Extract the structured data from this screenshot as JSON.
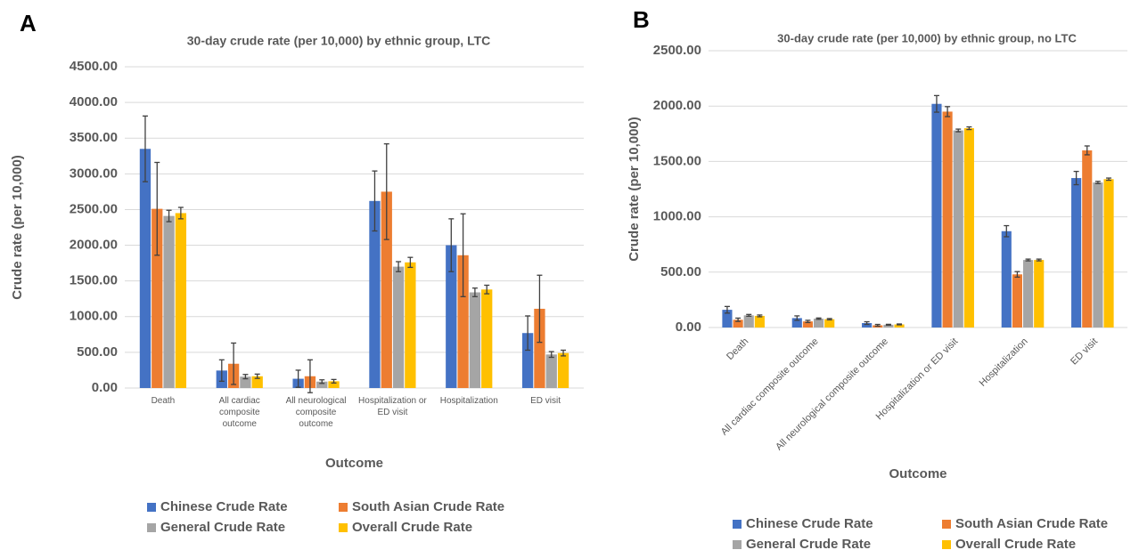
{
  "chart_data": [
    {
      "type": "bar",
      "panel": "A",
      "title": "30-day crude rate (per 10,000) by ethnic group, LTC",
      "x_label": "Outcome",
      "y_label": "Crude rate (per 10,000)",
      "categories": [
        "Death",
        "All cardiac composite outcome",
        "All neurological composite outcome",
        "Hospitalization or ED visit",
        "Hospitalization",
        "ED visit"
      ],
      "series": [
        {
          "name": "Chinese Crude Rate",
          "color": "#4472c4",
          "values": [
            3350,
            245,
            130,
            2620,
            2000,
            770
          ],
          "errors": [
            460,
            150,
            120,
            420,
            370,
            240
          ]
        },
        {
          "name": "South Asian Crude Rate",
          "color": "#ed7d31",
          "values": [
            2510,
            340,
            165,
            2750,
            1860,
            1110
          ],
          "errors": [
            650,
            290,
            230,
            670,
            580,
            470
          ]
        },
        {
          "name": "General Crude Rate",
          "color": "#a5a5a5",
          "values": [
            2410,
            160,
            90,
            1700,
            1340,
            470
          ],
          "errors": [
            80,
            30,
            25,
            70,
            60,
            40
          ]
        },
        {
          "name": "Overall Crude Rate",
          "color": "#ffc000",
          "values": [
            2450,
            165,
            95,
            1760,
            1380,
            490
          ],
          "errors": [
            80,
            30,
            25,
            70,
            60,
            40
          ]
        }
      ],
      "ylim": [
        0,
        4500
      ],
      "yticks": [
        {
          "value": 0,
          "label": "0.00"
        },
        {
          "value": 500,
          "label": "500.00"
        },
        {
          "value": 1000,
          "label": "1000.00"
        },
        {
          "value": 1500,
          "label": "1500.00"
        },
        {
          "value": 2000,
          "label": "2000.00"
        },
        {
          "value": 2500,
          "label": "2500.00"
        },
        {
          "value": 3000,
          "label": "3000.00"
        },
        {
          "value": 3500,
          "label": "3500.00"
        },
        {
          "value": 4000,
          "label": "4000.00"
        },
        {
          "value": 4500,
          "label": "4500.00"
        }
      ],
      "grid": true,
      "legend": "bottom"
    },
    {
      "type": "bar",
      "panel": "B",
      "title": "30-day crude rate (per 10,000) by ethnic group, no LTC",
      "x_label": "Outcome",
      "y_label": "Crude rate (per 10,000)",
      "categories": [
        "Death",
        "All cardiac composite outcome",
        "All neurological composite outcome",
        "Hospitalization or ED visit",
        "Hospitalization",
        "ED visit"
      ],
      "series": [
        {
          "name": "Chinese Crude Rate",
          "color": "#4472c4",
          "values": [
            160,
            85,
            40,
            2020,
            870,
            1350
          ],
          "errors": [
            30,
            20,
            12,
            75,
            50,
            60
          ]
        },
        {
          "name": "South Asian Crude Rate",
          "color": "#ed7d31",
          "values": [
            70,
            55,
            20,
            1950,
            480,
            1600
          ],
          "errors": [
            15,
            10,
            8,
            45,
            25,
            40
          ]
        },
        {
          "name": "General Crude Rate",
          "color": "#a5a5a5",
          "values": [
            110,
            80,
            25,
            1780,
            610,
            1310
          ],
          "errors": [
            8,
            6,
            4,
            12,
            8,
            10
          ]
        },
        {
          "name": "Overall Crude Rate",
          "color": "#ffc000",
          "values": [
            105,
            75,
            28,
            1800,
            610,
            1340
          ],
          "errors": [
            8,
            6,
            4,
            12,
            8,
            10
          ]
        }
      ],
      "ylim": [
        0,
        2500
      ],
      "yticks": [
        {
          "value": 0,
          "label": "0.00"
        },
        {
          "value": 500,
          "label": "500.00"
        },
        {
          "value": 1000,
          "label": "1000.00"
        },
        {
          "value": 1500,
          "label": "1500.00"
        },
        {
          "value": 2000,
          "label": "2000.00"
        },
        {
          "value": 2500,
          "label": "2500.00"
        }
      ],
      "grid": true,
      "legend": "bottom"
    }
  ]
}
